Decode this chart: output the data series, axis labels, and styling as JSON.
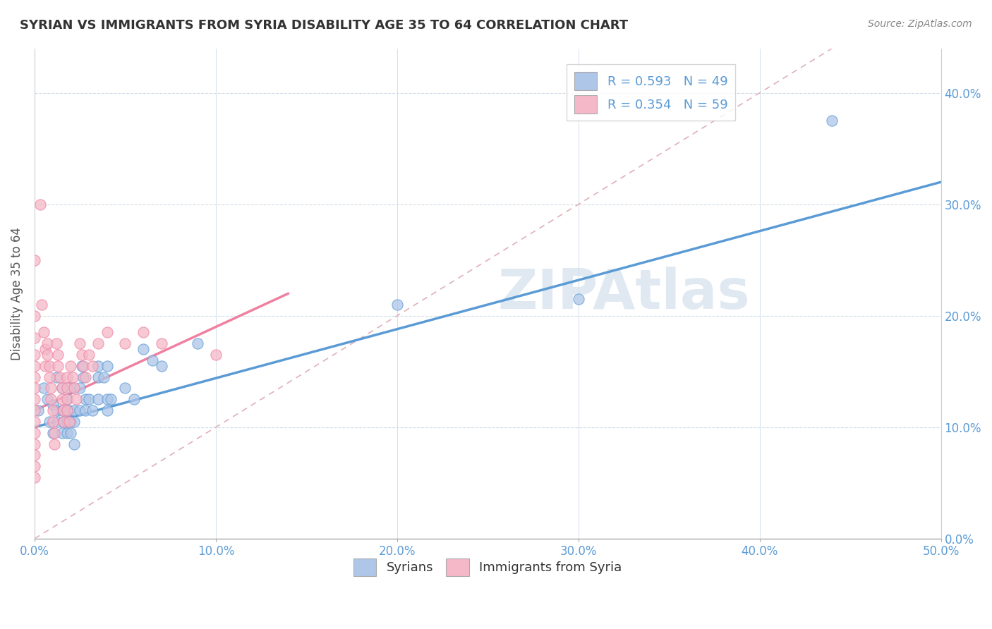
{
  "title": "SYRIAN VS IMMIGRANTS FROM SYRIA DISABILITY AGE 35 TO 64 CORRELATION CHART",
  "source": "Source: ZipAtlas.com",
  "ylabel": "Disability Age 35 to 64",
  "xlim": [
    0.0,
    0.5
  ],
  "ylim": [
    0.0,
    0.44
  ],
  "x_ticks": [
    0.0,
    0.1,
    0.2,
    0.3,
    0.4,
    0.5
  ],
  "y_ticks": [
    0.0,
    0.1,
    0.2,
    0.3,
    0.4
  ],
  "y_tick_labels": [
    "0.0%",
    "10.0%",
    "20.0%",
    "30.0%",
    "40.0%"
  ],
  "x_tick_labels": [
    "0.0%",
    "10.0%",
    "20.0%",
    "30.0%",
    "40.0%",
    "50.0%"
  ],
  "legend_blue_label": "R = 0.593   N = 49",
  "legend_pink_label": "R = 0.354   N = 59",
  "legend_syrians": "Syrians",
  "legend_immigrants": "Immigrants from Syria",
  "watermark": "ZIPAtlas",
  "blue_color": "#5b9bd5",
  "pink_color": "#f080a0",
  "blue_fill": "#aec6e8",
  "pink_fill": "#f4b8c8",
  "blue_line_x": [
    0.0,
    0.5
  ],
  "blue_line_y": [
    0.1,
    0.32
  ],
  "pink_line_x": [
    0.0,
    0.14
  ],
  "pink_line_y": [
    0.115,
    0.22
  ],
  "diag_line_x": [
    0.0,
    0.44
  ],
  "diag_line_y": [
    0.0,
    0.44
  ],
  "blue_scatter": [
    [
      0.002,
      0.115
    ],
    [
      0.005,
      0.135
    ],
    [
      0.007,
      0.125
    ],
    [
      0.008,
      0.105
    ],
    [
      0.01,
      0.12
    ],
    [
      0.01,
      0.095
    ],
    [
      0.012,
      0.145
    ],
    [
      0.012,
      0.115
    ],
    [
      0.013,
      0.105
    ],
    [
      0.015,
      0.135
    ],
    [
      0.015,
      0.115
    ],
    [
      0.015,
      0.095
    ],
    [
      0.016,
      0.105
    ],
    [
      0.018,
      0.125
    ],
    [
      0.018,
      0.115
    ],
    [
      0.018,
      0.105
    ],
    [
      0.018,
      0.095
    ],
    [
      0.019,
      0.115
    ],
    [
      0.02,
      0.135
    ],
    [
      0.02,
      0.105
    ],
    [
      0.02,
      0.095
    ],
    [
      0.022,
      0.115
    ],
    [
      0.022,
      0.105
    ],
    [
      0.022,
      0.085
    ],
    [
      0.025,
      0.135
    ],
    [
      0.025,
      0.115
    ],
    [
      0.026,
      0.155
    ],
    [
      0.027,
      0.145
    ],
    [
      0.028,
      0.125
    ],
    [
      0.028,
      0.115
    ],
    [
      0.03,
      0.125
    ],
    [
      0.032,
      0.115
    ],
    [
      0.035,
      0.155
    ],
    [
      0.035,
      0.145
    ],
    [
      0.035,
      0.125
    ],
    [
      0.038,
      0.145
    ],
    [
      0.04,
      0.155
    ],
    [
      0.04,
      0.125
    ],
    [
      0.04,
      0.115
    ],
    [
      0.042,
      0.125
    ],
    [
      0.05,
      0.135
    ],
    [
      0.055,
      0.125
    ],
    [
      0.06,
      0.17
    ],
    [
      0.065,
      0.16
    ],
    [
      0.07,
      0.155
    ],
    [
      0.09,
      0.175
    ],
    [
      0.2,
      0.21
    ],
    [
      0.3,
      0.215
    ],
    [
      0.44,
      0.375
    ]
  ],
  "pink_scatter": [
    [
      0.0,
      0.25
    ],
    [
      0.0,
      0.2
    ],
    [
      0.0,
      0.18
    ],
    [
      0.0,
      0.165
    ],
    [
      0.0,
      0.155
    ],
    [
      0.0,
      0.145
    ],
    [
      0.0,
      0.135
    ],
    [
      0.0,
      0.125
    ],
    [
      0.0,
      0.115
    ],
    [
      0.0,
      0.105
    ],
    [
      0.0,
      0.095
    ],
    [
      0.0,
      0.085
    ],
    [
      0.0,
      0.075
    ],
    [
      0.0,
      0.065
    ],
    [
      0.0,
      0.055
    ],
    [
      0.003,
      0.3
    ],
    [
      0.004,
      0.21
    ],
    [
      0.005,
      0.185
    ],
    [
      0.006,
      0.17
    ],
    [
      0.006,
      0.155
    ],
    [
      0.007,
      0.175
    ],
    [
      0.007,
      0.165
    ],
    [
      0.008,
      0.155
    ],
    [
      0.008,
      0.145
    ],
    [
      0.009,
      0.135
    ],
    [
      0.009,
      0.125
    ],
    [
      0.01,
      0.115
    ],
    [
      0.01,
      0.105
    ],
    [
      0.011,
      0.095
    ],
    [
      0.011,
      0.085
    ],
    [
      0.012,
      0.175
    ],
    [
      0.013,
      0.165
    ],
    [
      0.013,
      0.155
    ],
    [
      0.014,
      0.145
    ],
    [
      0.015,
      0.135
    ],
    [
      0.015,
      0.125
    ],
    [
      0.016,
      0.115
    ],
    [
      0.016,
      0.105
    ],
    [
      0.018,
      0.145
    ],
    [
      0.018,
      0.135
    ],
    [
      0.018,
      0.125
    ],
    [
      0.018,
      0.115
    ],
    [
      0.019,
      0.105
    ],
    [
      0.02,
      0.155
    ],
    [
      0.021,
      0.145
    ],
    [
      0.022,
      0.135
    ],
    [
      0.023,
      0.125
    ],
    [
      0.025,
      0.175
    ],
    [
      0.026,
      0.165
    ],
    [
      0.027,
      0.155
    ],
    [
      0.028,
      0.145
    ],
    [
      0.03,
      0.165
    ],
    [
      0.032,
      0.155
    ],
    [
      0.035,
      0.175
    ],
    [
      0.04,
      0.185
    ],
    [
      0.05,
      0.175
    ],
    [
      0.06,
      0.185
    ],
    [
      0.07,
      0.175
    ],
    [
      0.1,
      0.165
    ]
  ]
}
